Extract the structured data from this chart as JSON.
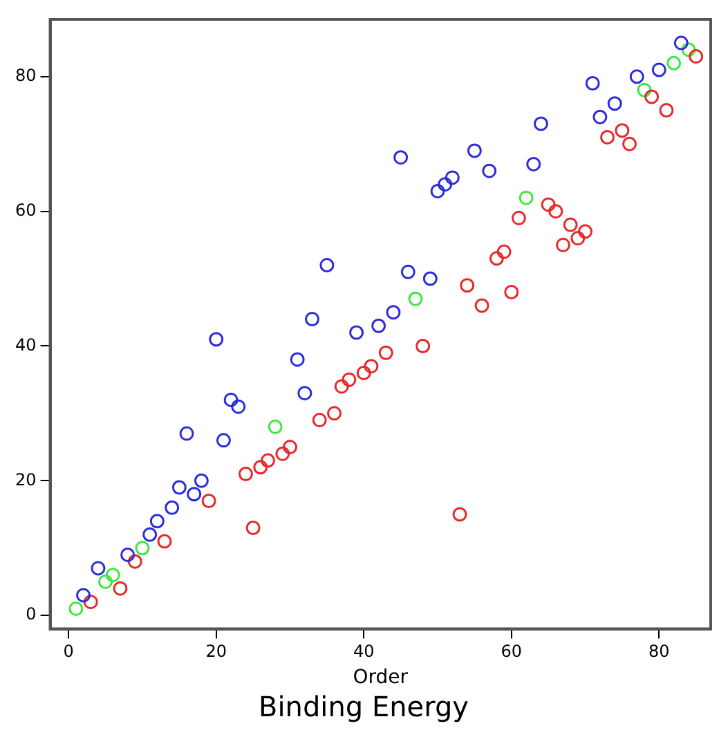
{
  "chart_data": {
    "type": "scatter",
    "title": "Binding Energy",
    "xlabel": "Order",
    "xlim": [
      -2.5,
      87
    ],
    "ylim": [
      -2,
      88.5
    ],
    "xticks": [
      0,
      20,
      40,
      60,
      80
    ],
    "yticks": [
      0,
      20,
      40,
      60,
      80
    ],
    "grid": false,
    "legend": false,
    "marker": "circle",
    "series": [
      {
        "color": "#2b2bdd",
        "x": [
          2,
          4,
          8,
          11,
          12,
          14,
          15,
          16,
          17,
          18,
          20,
          21,
          22,
          23,
          31,
          32,
          33,
          35,
          39,
          42,
          44,
          45,
          46,
          49,
          50,
          51,
          52,
          55,
          57,
          63,
          64,
          71,
          72,
          74,
          77,
          80,
          83
        ],
        "values": [
          3,
          7,
          9,
          12,
          14,
          16,
          19,
          27,
          18,
          20,
          41,
          26,
          32,
          31,
          38,
          33,
          44,
          52,
          42,
          43,
          45,
          68,
          51,
          50,
          63,
          64,
          65,
          69,
          66,
          67,
          73,
          79,
          74,
          76,
          80,
          81,
          85
        ]
      },
      {
        "color": "#e82828",
        "x": [
          3,
          7,
          9,
          13,
          19,
          24,
          25,
          26,
          27,
          29,
          30,
          34,
          36,
          37,
          38,
          40,
          41,
          43,
          48,
          53,
          54,
          56,
          58,
          59,
          60,
          61,
          65,
          66,
          67,
          68,
          69,
          70,
          73,
          75,
          76,
          79,
          81,
          85
        ],
        "values": [
          2,
          4,
          8,
          11,
          17,
          21,
          13,
          22,
          23,
          24,
          25,
          29,
          30,
          34,
          35,
          36,
          37,
          39,
          40,
          15,
          49,
          46,
          53,
          54,
          48,
          59,
          61,
          60,
          55,
          58,
          56,
          57,
          71,
          72,
          70,
          77,
          75,
          83
        ]
      },
      {
        "color": "#3ee83e",
        "x": [
          1,
          5,
          6,
          10,
          28,
          47,
          62,
          78,
          82,
          84
        ],
        "values": [
          1,
          5,
          6,
          10,
          28,
          47,
          62,
          78,
          82,
          84
        ]
      }
    ]
  }
}
